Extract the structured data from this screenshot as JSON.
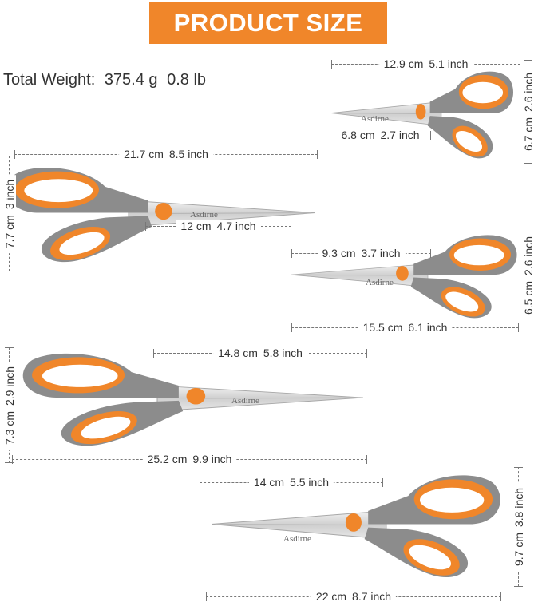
{
  "title": "PRODUCT SIZE",
  "weight": {
    "label": "Total Weight:",
    "grams": "375.4 g",
    "pounds": "0.8 lb"
  },
  "brand": "Asdirne",
  "colors": {
    "accent": "#f0862a",
    "handle_gray": "#8c8c8c",
    "blade": "#d9d9d9"
  },
  "dimensions": {
    "small_length": {
      "cm": "12.9 cm",
      "inch": "5.1 inch"
    },
    "small_blade": {
      "cm": "6.8 cm",
      "inch": "2.7 inch"
    },
    "small_height": {
      "cm": "6.7 cm",
      "inch": "2.6 inch"
    },
    "large_length": {
      "cm": "21.7 cm",
      "inch": "8.5 inch"
    },
    "large_blade": {
      "cm": "12 cm",
      "inch": "4.7 inch"
    },
    "large_height": {
      "cm": "7.7 cm",
      "inch": "3 inch"
    },
    "medium_blade": {
      "cm": "9.3 cm",
      "inch": "3.7 inch"
    },
    "medium_length": {
      "cm": "15.5 cm",
      "inch": "6.1 inch"
    },
    "medium_height": {
      "cm": "6.5 cm",
      "inch": "2.6 inch"
    },
    "xl_blade": {
      "cm": "14.8 cm",
      "inch": "5.8 inch"
    },
    "xl_length": {
      "cm": "25.2 cm",
      "inch": "9.9 inch"
    },
    "xl_height": {
      "cm": "7.3 cm",
      "inch": "2.9 inch"
    },
    "kitchen_blade": {
      "cm": "14 cm",
      "inch": "5.5 inch"
    },
    "kitchen_length": {
      "cm": "22 cm",
      "inch": "8.7 inch"
    },
    "kitchen_height": {
      "cm": "9.7 cm",
      "inch": "3.8 inch"
    }
  }
}
